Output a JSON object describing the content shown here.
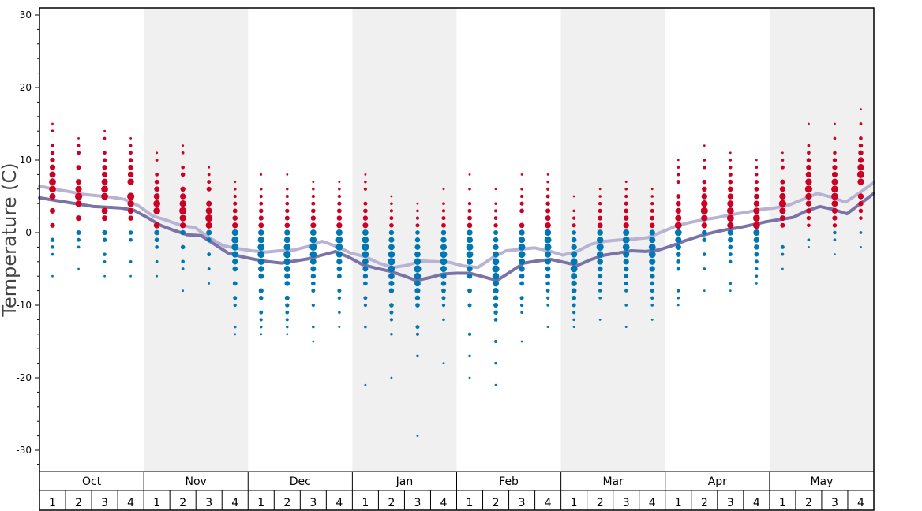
{
  "chart_data": {
    "type": "scatter",
    "ylabel": "Temperature (C)",
    "ylim": [
      -33,
      31
    ],
    "y_ticks": [
      30,
      20,
      10,
      0,
      -10,
      -20,
      -30
    ],
    "months": [
      "Oct",
      "Nov",
      "Dec",
      "Jan",
      "Feb",
      "Mar",
      "Apr",
      "May"
    ],
    "weeks": [
      "1",
      "2",
      "3",
      "4"
    ],
    "colors": {
      "above_freezing": "#cc0022",
      "below_freezing": "#0077b3",
      "line_light": "#b8b3d3",
      "line_dark": "#7a73a8",
      "band": "#f0f0f0"
    },
    "dot_values": [
      [
        15,
        14,
        12,
        11,
        10,
        9,
        8,
        7,
        6,
        5,
        3,
        1,
        -1,
        -2,
        -3,
        -6
      ],
      [
        13,
        12,
        11,
        9,
        7,
        6,
        5,
        4,
        2,
        0,
        -1,
        -2,
        -5
      ],
      [
        14,
        13,
        11,
        10,
        9,
        8,
        7,
        6,
        5,
        3,
        2,
        0,
        -1,
        -3,
        -4,
        -6
      ],
      [
        13,
        12,
        11,
        10,
        9,
        8,
        7,
        5,
        4,
        3,
        2,
        0,
        -1,
        -4,
        -6
      ],
      [
        11,
        10,
        8,
        7,
        6,
        5,
        4,
        3,
        1,
        0,
        -1,
        -2,
        -4,
        -6
      ],
      [
        12,
        11,
        9,
        8,
        6,
        5,
        4,
        3,
        2,
        1,
        0,
        -2,
        -4,
        -5,
        -8
      ],
      [
        9,
        8,
        7,
        6,
        4,
        3,
        2,
        1,
        0,
        -1,
        -3,
        -5,
        -7
      ],
      [
        7,
        6,
        5,
        4,
        3,
        2,
        1,
        0,
        -1,
        -2,
        -3,
        -4,
        -5,
        -7,
        -9,
        -10,
        -13,
        -14
      ],
      [
        8,
        6,
        5,
        4,
        3,
        2,
        1,
        0,
        -1,
        -2,
        -3,
        -4,
        -5,
        -6,
        -8,
        -9,
        -11,
        -12,
        -13,
        -14
      ],
      [
        8,
        6,
        5,
        4,
        3,
        2,
        1,
        0,
        -1,
        -2,
        -3,
        -4,
        -5,
        -6,
        -7,
        -9,
        -10,
        -11,
        -12,
        -13,
        -14
      ],
      [
        7,
        6,
        5,
        4,
        3,
        2,
        1,
        0,
        -1,
        -2,
        -3,
        -4,
        -5,
        -6,
        -7,
        -8,
        -10,
        -13,
        -15
      ],
      [
        7,
        6,
        5,
        4,
        3,
        2,
        1,
        0,
        -1,
        -2,
        -3,
        -4,
        -5,
        -6,
        -8,
        -9,
        -11,
        -13
      ],
      [
        8,
        7,
        6,
        4,
        3,
        2,
        1,
        0,
        -1,
        -2,
        -3,
        -4,
        -5,
        -6,
        -7,
        -9,
        -10,
        -13,
        -21
      ],
      [
        5,
        4,
        3,
        2,
        1,
        0,
        -1,
        -2,
        -3,
        -4,
        -5,
        -6,
        -7,
        -8,
        -10,
        -11,
        -12,
        -14,
        -20
      ],
      [
        4,
        3,
        2,
        1,
        0,
        -1,
        -2,
        -3,
        -4,
        -5,
        -6,
        -7,
        -8,
        -9,
        -10,
        -13,
        -14,
        -17,
        -28
      ],
      [
        6,
        4,
        3,
        2,
        1,
        0,
        -1,
        -2,
        -3,
        -4,
        -5,
        -6,
        -7,
        -8,
        -9,
        -10,
        -12,
        -18
      ],
      [
        8,
        6,
        4,
        3,
        2,
        1,
        0,
        -1,
        -2,
        -3,
        -4,
        -5,
        -6,
        -8,
        -10,
        -14,
        -17,
        -20
      ],
      [
        6,
        4,
        3,
        2,
        1,
        0,
        -1,
        -2,
        -3,
        -4,
        -5,
        -6,
        -7,
        -8,
        -9,
        -10,
        -11,
        -12,
        -15,
        -18,
        -21
      ],
      [
        8,
        6,
        5,
        4,
        3,
        1,
        0,
        -1,
        -2,
        -3,
        -4,
        -5,
        -6,
        -7,
        -9,
        -10,
        -11,
        -15
      ],
      [
        8,
        7,
        6,
        5,
        4,
        3,
        2,
        1,
        0,
        -1,
        -2,
        -3,
        -4,
        -5,
        -6,
        -7,
        -8,
        -9,
        -10,
        -13
      ],
      [
        5,
        3,
        2,
        1,
        0,
        -1,
        -2,
        -3,
        -4,
        -5,
        -6,
        -7,
        -8,
        -9,
        -10,
        -11,
        -12,
        -13
      ],
      [
        6,
        5,
        4,
        3,
        2,
        1,
        0,
        -1,
        -2,
        -3,
        -4,
        -5,
        -6,
        -7,
        -8,
        -9,
        -12
      ],
      [
        7,
        6,
        5,
        4,
        3,
        2,
        1,
        0,
        -1,
        -2,
        -3,
        -4,
        -5,
        -6,
        -7,
        -8,
        -10,
        -13
      ],
      [
        6,
        5,
        4,
        3,
        2,
        1,
        0,
        -1,
        -2,
        -3,
        -4,
        -5,
        -6,
        -7,
        -8,
        -9,
        -10,
        -12
      ],
      [
        10,
        9,
        8,
        7,
        5,
        4,
        3,
        2,
        1,
        0,
        -1,
        -2,
        -3,
        -4,
        -5,
        -8,
        -9,
        -10
      ],
      [
        12,
        10,
        9,
        7,
        6,
        5,
        4,
        3,
        2,
        1,
        0,
        -1,
        -3,
        -5,
        -8
      ],
      [
        11,
        10,
        9,
        8,
        7,
        6,
        5,
        4,
        3,
        2,
        1,
        0,
        -1,
        -2,
        -3,
        -4,
        -7,
        -8
      ],
      [
        10,
        9,
        8,
        7,
        6,
        5,
        4,
        3,
        2,
        1,
        0,
        -1,
        -2,
        -3,
        -4,
        -5,
        -6,
        -7
      ],
      [
        11,
        10,
        9,
        7,
        6,
        5,
        4,
        3,
        2,
        1,
        -2,
        -3,
        -5
      ],
      [
        15,
        12,
        11,
        10,
        9,
        8,
        7,
        6,
        5,
        4,
        3,
        2,
        1,
        -1,
        -2
      ],
      [
        15,
        13,
        11,
        10,
        9,
        8,
        7,
        6,
        5,
        4,
        3,
        2,
        1,
        0,
        -1,
        -3
      ],
      [
        17,
        15,
        13,
        12,
        11,
        10,
        9,
        8,
        7,
        5,
        4,
        3,
        2,
        0,
        -2
      ]
    ],
    "series": [
      {
        "values": [
          6.4,
          6.0,
          5.7,
          5.3,
          5.1,
          4.9,
          4.6,
          3.7,
          2.3,
          1.7,
          1.0,
          0.7,
          -0.7,
          -1.8,
          -2.2,
          -2.5,
          -2.7,
          -2.5,
          -2.4,
          -1.9,
          -1.2,
          -1.9,
          -2.8,
          -3.3,
          -4.2,
          -4.8,
          -4.5,
          -3.9,
          -4.0,
          -4.1,
          -4.6,
          -4.8,
          -3.5,
          -2.5,
          -2.3,
          -2.1,
          -2.5,
          -3.1,
          -2.6,
          -1.6,
          -1.2,
          -1.0,
          -0.9,
          -0.7,
          0.1,
          0.9,
          1.4,
          1.8,
          2.1,
          2.5,
          2.8,
          3.2,
          3.4,
          3.8,
          4.6,
          5.4,
          4.9,
          4.2,
          5.5,
          6.9
        ]
      },
      {
        "values": [
          4.8,
          4.5,
          4.2,
          3.9,
          3.6,
          3.5,
          3.4,
          3.1,
          2.1,
          1.0,
          0.3,
          -0.3,
          -0.4,
          -1.6,
          -2.8,
          -3.3,
          -3.7,
          -4.0,
          -4.2,
          -3.9,
          -3.6,
          -3.1,
          -2.6,
          -3.4,
          -4.4,
          -4.9,
          -5.3,
          -5.9,
          -6.6,
          -6.2,
          -5.7,
          -5.6,
          -5.6,
          -6.1,
          -6.6,
          -5.4,
          -4.2,
          -3.9,
          -3.7,
          -4.1,
          -4.5,
          -3.7,
          -3.1,
          -2.8,
          -2.5,
          -2.6,
          -2.4,
          -1.8,
          -1.1,
          -0.5,
          0.0,
          0.4,
          0.7,
          1.1,
          1.5,
          1.8,
          2.1,
          3.0,
          3.6,
          3.2,
          2.6,
          4.0,
          5.4
        ]
      }
    ]
  }
}
